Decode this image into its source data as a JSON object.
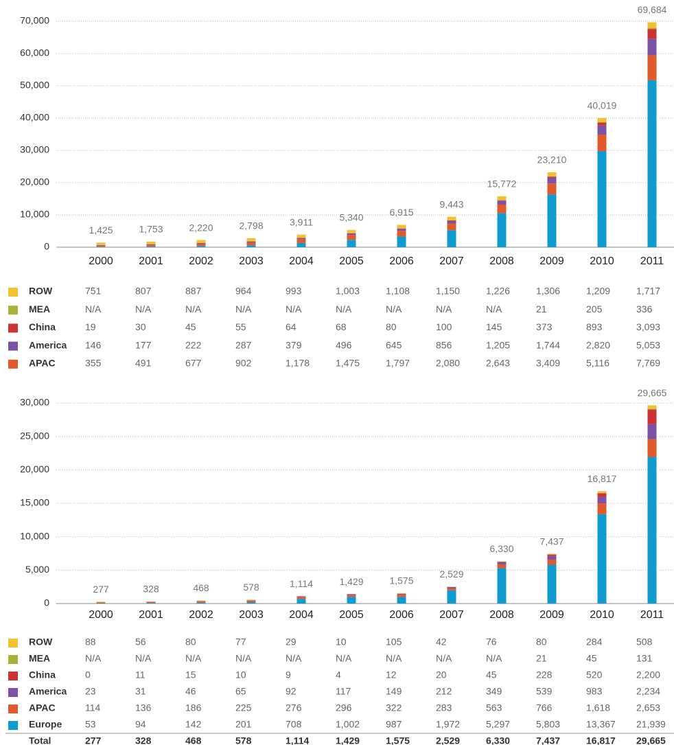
{
  "chart_data": [
    {
      "type": "bar",
      "stacked": true,
      "grid": true,
      "categories": [
        "2000",
        "2001",
        "2002",
        "2003",
        "2004",
        "2005",
        "2006",
        "2007",
        "2008",
        "2009",
        "2010",
        "2011"
      ],
      "ylim": [
        0,
        70000
      ],
      "yticks": [
        0,
        {
          "value": 10000,
          "label": "10,000"
        },
        {
          "value": 20000,
          "label": "20,000"
        },
        {
          "value": 30000,
          "label": "30,000"
        },
        {
          "value": 40000,
          "label": "40,000"
        },
        {
          "value": 50000,
          "label": "50,000"
        },
        {
          "value": 60000,
          "label": "60,000"
        },
        {
          "value": 70000,
          "label": "70,000"
        }
      ],
      "series": [
        {
          "name": "ROW",
          "color": "#f2c12e",
          "values": [
            751,
            807,
            887,
            964,
            993,
            1003,
            1108,
            1150,
            1226,
            1306,
            1209,
            1717
          ],
          "value_labels": [
            "751",
            "807",
            "887",
            "964",
            "993",
            "1,003",
            "1,108",
            "1,150",
            "1,226",
            "1,306",
            "1,209",
            "1,717"
          ]
        },
        {
          "name": "MEA",
          "color": "#a8b23a",
          "values": [
            null,
            null,
            null,
            null,
            null,
            null,
            null,
            null,
            null,
            21,
            205,
            336
          ],
          "value_labels": [
            "N/A",
            "N/A",
            "N/A",
            "N/A",
            "N/A",
            "N/A",
            "N/A",
            "N/A",
            "N/A",
            "21",
            "205",
            "336"
          ]
        },
        {
          "name": "China",
          "color": "#cc3333",
          "values": [
            19,
            30,
            45,
            55,
            64,
            68,
            80,
            100,
            145,
            373,
            893,
            3093
          ],
          "value_labels": [
            "19",
            "30",
            "45",
            "55",
            "64",
            "68",
            "80",
            "100",
            "145",
            "373",
            "893",
            "3,093"
          ]
        },
        {
          "name": "America",
          "color": "#7b52a6",
          "values": [
            146,
            177,
            222,
            287,
            379,
            496,
            645,
            856,
            1205,
            1744,
            2820,
            5053
          ],
          "value_labels": [
            "146",
            "177",
            "222",
            "287",
            "379",
            "496",
            "645",
            "856",
            "1,205",
            "1,744",
            "2,820",
            "5,053"
          ]
        },
        {
          "name": "APAC",
          "color": "#e05a2b",
          "values": [
            355,
            491,
            677,
            902,
            1178,
            1475,
            1797,
            2080,
            2643,
            3409,
            5116,
            7769
          ],
          "value_labels": [
            "355",
            "491",
            "677",
            "902",
            "1,178",
            "1,475",
            "1,797",
            "2,080",
            "2,643",
            "3,409",
            "5,116",
            "7,769"
          ]
        },
        {
          "color": "#0f9bd0",
          "values": [
            154,
            248,
            389,
            590,
            1297,
            2298,
            3285,
            5257,
            10553,
            16357,
            29776,
            51716
          ]
        }
      ],
      "totals": {
        "values": [
          1425,
          1753,
          2220,
          2798,
          3911,
          5340,
          6915,
          9443,
          15772,
          23210,
          40019,
          69684
        ],
        "value_labels": [
          "1,425",
          "1,753",
          "2,220",
          "2,798",
          "3,911",
          "5,340",
          "6,915",
          "9,443",
          "15,772",
          "23,210",
          "40,019",
          "69,684"
        ]
      }
    },
    {
      "type": "bar",
      "stacked": true,
      "grid": true,
      "categories": [
        "2000",
        "2001",
        "2002",
        "2003",
        "2004",
        "2005",
        "2006",
        "2007",
        "2008",
        "2009",
        "2010",
        "2011"
      ],
      "ylim": [
        0,
        30000
      ],
      "yticks": [
        0,
        {
          "value": 5000,
          "label": "5,000"
        },
        {
          "value": 10000,
          "label": "10,000"
        },
        {
          "value": 15000,
          "label": "15,000"
        },
        {
          "value": 20000,
          "label": "20,000"
        },
        {
          "value": 25000,
          "label": "25,000"
        },
        {
          "value": 30000,
          "label": "30,000"
        }
      ],
      "series": [
        {
          "name": "ROW",
          "color": "#f2c12e",
          "values": [
            88,
            56,
            80,
            77,
            29,
            10,
            105,
            42,
            76,
            80,
            284,
            508
          ]
        },
        {
          "name": "MEA",
          "color": "#a8b23a",
          "values": [
            null,
            null,
            null,
            null,
            null,
            null,
            null,
            null,
            null,
            21,
            45,
            131
          ],
          "value_labels": [
            "N/A",
            "N/A",
            "N/A",
            "N/A",
            "N/A",
            "N/A",
            "N/A",
            "N/A",
            "N/A",
            "21",
            "45",
            "131"
          ]
        },
        {
          "name": "China",
          "color": "#cc3333",
          "values": [
            0,
            11,
            15,
            10,
            9,
            4,
            12,
            20,
            45,
            228,
            520,
            2200
          ],
          "value_labels": [
            "0",
            "11",
            "15",
            "10",
            "9",
            "4",
            "12",
            "20",
            "45",
            "228",
            "520",
            "2,200"
          ]
        },
        {
          "name": "America",
          "color": "#7b52a6",
          "values": [
            23,
            31,
            46,
            65,
            92,
            117,
            149,
            212,
            349,
            539,
            983,
            2234
          ],
          "value_labels": [
            "23",
            "31",
            "46",
            "65",
            "92",
            "117",
            "149",
            "212",
            "349",
            "539",
            "983",
            "2,234"
          ]
        },
        {
          "name": "APAC",
          "color": "#e05a2b",
          "values": [
            114,
            136,
            186,
            225,
            276,
            296,
            322,
            283,
            563,
            766,
            1618,
            2653
          ],
          "value_labels": [
            "114",
            "136",
            "186",
            "225",
            "276",
            "296",
            "322",
            "283",
            "563",
            "766",
            "1,618",
            "2,653"
          ]
        },
        {
          "name": "Europe",
          "color": "#0f9bd0",
          "values": [
            53,
            94,
            142,
            201,
            708,
            1002,
            987,
            1972,
            5297,
            5803,
            13367,
            21939
          ],
          "value_labels": [
            "53",
            "94",
            "142",
            "201",
            "708",
            "1,002",
            "987",
            "1,972",
            "5,297",
            "5,803",
            "13,367",
            "21,939"
          ]
        }
      ],
      "totals": {
        "name": "Total",
        "values": [
          277,
          328,
          468,
          578,
          1114,
          1429,
          1575,
          2529,
          6330,
          7437,
          16817,
          29665
        ],
        "value_labels": [
          "277",
          "328",
          "468",
          "578",
          "1,114",
          "1,429",
          "1,575",
          "2,529",
          "6,330",
          "7,437",
          "16,817",
          "29,665"
        ]
      }
    }
  ]
}
